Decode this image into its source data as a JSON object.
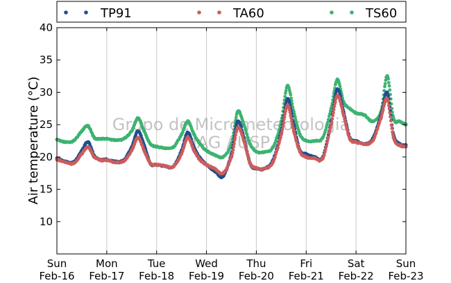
{
  "chart_data": {
    "type": "scatter",
    "ylabel": "Air temperature (°C)",
    "ylim": [
      5,
      40
    ],
    "yticks": [
      10,
      15,
      20,
      25,
      30,
      35,
      40
    ],
    "xlim": [
      "2014-02-16",
      "2014-02-23"
    ],
    "xticks": [
      {
        "date": "2014-02-16",
        "label": [
          "Sun",
          "Feb-16"
        ]
      },
      {
        "date": "2014-02-17",
        "label": [
          "Mon",
          "Feb-17"
        ]
      },
      {
        "date": "2014-02-18",
        "label": [
          "Tue",
          "Feb-18"
        ]
      },
      {
        "date": "2014-02-19",
        "label": [
          "Wed",
          "Feb-19"
        ]
      },
      {
        "date": "2014-02-20",
        "label": [
          "Thu",
          "Feb-20"
        ]
      },
      {
        "date": "2014-02-21",
        "label": [
          "Fri",
          "Feb-21"
        ]
      },
      {
        "date": "2014-02-22",
        "label": [
          "Sat",
          "Feb-22"
        ]
      },
      {
        "date": "2014-02-23",
        "label": [
          "Sun",
          "Feb-23"
        ]
      }
    ],
    "grid": "vertical",
    "legend": "top",
    "watermark": [
      "Grupo de Micrometeorologia",
      "IAG / USP"
    ],
    "series": [
      {
        "name": "TP91",
        "color": "#1f4e8c",
        "x": [
          "2014-02-16 00:00",
          "2014-02-16 04:00",
          "2014-02-16 08:00",
          "2014-02-16 12:00",
          "2014-02-16 15:00",
          "2014-02-16 18:00",
          "2014-02-16 21:00",
          "2014-02-17 00:00",
          "2014-02-17 04:00",
          "2014-02-17 08:00",
          "2014-02-17 12:00",
          "2014-02-17 15:00",
          "2014-02-17 18:00",
          "2014-02-17 21:00",
          "2014-02-18 00:00",
          "2014-02-18 04:00",
          "2014-02-18 08:00",
          "2014-02-18 12:00",
          "2014-02-18 15:00",
          "2014-02-18 18:00",
          "2014-02-18 21:00",
          "2014-02-19 00:00",
          "2014-02-19 04:00",
          "2014-02-19 08:00",
          "2014-02-19 12:00",
          "2014-02-19 15:00",
          "2014-02-19 18:00",
          "2014-02-19 21:00",
          "2014-02-20 00:00",
          "2014-02-20 04:00",
          "2014-02-20 08:00",
          "2014-02-20 12:00",
          "2014-02-20 15:00",
          "2014-02-20 18:00",
          "2014-02-20 21:00",
          "2014-02-21 00:00",
          "2014-02-21 04:00",
          "2014-02-21 08:00",
          "2014-02-21 12:00",
          "2014-02-21 15:00",
          "2014-02-21 18:00",
          "2014-02-21 21:00",
          "2014-02-22 00:00",
          "2014-02-22 04:00",
          "2014-02-22 08:00",
          "2014-02-22 12:00",
          "2014-02-22 15:00",
          "2014-02-22 18:00",
          "2014-02-22 21:00",
          "2014-02-23 00:00"
        ],
        "y": [
          19.8,
          19.3,
          19.2,
          21.0,
          22.3,
          20.2,
          19.6,
          19.6,
          19.3,
          19.5,
          21.5,
          24.0,
          21.8,
          19.0,
          18.8,
          18.6,
          18.5,
          21.0,
          23.8,
          21.5,
          19.8,
          18.8,
          17.8,
          17.0,
          20.5,
          25.5,
          23.0,
          19.0,
          18.2,
          18.2,
          19.5,
          24.0,
          29.0,
          25.0,
          21.0,
          20.5,
          20.0,
          20.0,
          25.5,
          30.5,
          27.0,
          23.0,
          22.5,
          22.0,
          22.8,
          26.5,
          30.0,
          23.5,
          22.0,
          21.8
        ]
      },
      {
        "name": "TA60",
        "color": "#cd5c5c",
        "x": [
          "2014-02-16 00:00",
          "2014-02-16 04:00",
          "2014-02-16 08:00",
          "2014-02-16 12:00",
          "2014-02-16 15:00",
          "2014-02-16 18:00",
          "2014-02-16 21:00",
          "2014-02-17 00:00",
          "2014-02-17 04:00",
          "2014-02-17 08:00",
          "2014-02-17 12:00",
          "2014-02-17 15:00",
          "2014-02-17 18:00",
          "2014-02-17 21:00",
          "2014-02-18 00:00",
          "2014-02-18 04:00",
          "2014-02-18 08:00",
          "2014-02-18 12:00",
          "2014-02-18 15:00",
          "2014-02-18 18:00",
          "2014-02-18 21:00",
          "2014-02-19 00:00",
          "2014-02-19 04:00",
          "2014-02-19 08:00",
          "2014-02-19 12:00",
          "2014-02-19 15:00",
          "2014-02-19 18:00",
          "2014-02-19 21:00",
          "2014-02-20 00:00",
          "2014-02-20 04:00",
          "2014-02-20 08:00",
          "2014-02-20 12:00",
          "2014-02-20 15:00",
          "2014-02-20 18:00",
          "2014-02-20 21:00",
          "2014-02-21 00:00",
          "2014-02-21 04:00",
          "2014-02-21 08:00",
          "2014-02-21 12:00",
          "2014-02-21 15:00",
          "2014-02-21 18:00",
          "2014-02-21 21:00",
          "2014-02-22 00:00",
          "2014-02-22 04:00",
          "2014-02-22 08:00",
          "2014-02-22 12:00",
          "2014-02-22 15:00",
          "2014-02-22 18:00",
          "2014-02-22 21:00",
          "2014-02-23 00:00"
        ],
        "y": [
          19.6,
          19.2,
          19.0,
          20.5,
          21.5,
          20.0,
          19.5,
          19.5,
          19.2,
          19.3,
          21.0,
          23.0,
          21.0,
          19.0,
          18.8,
          18.6,
          18.5,
          20.5,
          23.0,
          21.0,
          19.5,
          18.8,
          18.2,
          17.5,
          20.0,
          24.5,
          22.5,
          19.0,
          18.3,
          18.2,
          19.2,
          23.5,
          28.0,
          24.0,
          20.8,
          20.0,
          19.8,
          19.8,
          25.0,
          29.5,
          26.5,
          22.8,
          22.3,
          22.0,
          22.5,
          26.0,
          29.0,
          23.0,
          21.8,
          21.6
        ]
      },
      {
        "name": "TS60",
        "color": "#3cb371",
        "x": [
          "2014-02-16 00:00",
          "2014-02-16 04:00",
          "2014-02-16 08:00",
          "2014-02-16 12:00",
          "2014-02-16 15:00",
          "2014-02-16 18:00",
          "2014-02-16 21:00",
          "2014-02-17 00:00",
          "2014-02-17 04:00",
          "2014-02-17 08:00",
          "2014-02-17 12:00",
          "2014-02-17 15:00",
          "2014-02-17 18:00",
          "2014-02-17 21:00",
          "2014-02-18 00:00",
          "2014-02-18 04:00",
          "2014-02-18 08:00",
          "2014-02-18 12:00",
          "2014-02-18 15:00",
          "2014-02-18 18:00",
          "2014-02-18 21:00",
          "2014-02-19 00:00",
          "2014-02-19 04:00",
          "2014-02-19 08:00",
          "2014-02-19 12:00",
          "2014-02-19 15:00",
          "2014-02-19 18:00",
          "2014-02-19 21:00",
          "2014-02-20 00:00",
          "2014-02-20 04:00",
          "2014-02-20 08:00",
          "2014-02-20 12:00",
          "2014-02-20 15:00",
          "2014-02-20 18:00",
          "2014-02-20 21:00",
          "2014-02-21 00:00",
          "2014-02-21 04:00",
          "2014-02-21 08:00",
          "2014-02-21 12:00",
          "2014-02-21 15:00",
          "2014-02-21 18:00",
          "2014-02-21 21:00",
          "2014-02-22 00:00",
          "2014-02-22 04:00",
          "2014-02-22 08:00",
          "2014-02-22 12:00",
          "2014-02-22 15:00",
          "2014-02-22 18:00",
          "2014-02-22 21:00",
          "2014-02-23 00:00"
        ],
        "y": [
          22.7,
          22.3,
          22.5,
          24.0,
          24.8,
          23.0,
          22.8,
          22.8,
          22.6,
          22.8,
          24.0,
          26.0,
          24.0,
          22.0,
          21.6,
          21.4,
          21.5,
          23.5,
          25.5,
          23.5,
          22.0,
          21.0,
          20.3,
          20.0,
          22.0,
          27.0,
          25.0,
          22.0,
          20.8,
          20.8,
          21.5,
          25.5,
          31.0,
          27.0,
          23.5,
          22.5,
          22.5,
          23.0,
          27.5,
          32.0,
          28.5,
          27.5,
          26.8,
          26.5,
          25.5,
          27.0,
          32.5,
          26.0,
          25.5,
          25.0
        ]
      }
    ]
  }
}
